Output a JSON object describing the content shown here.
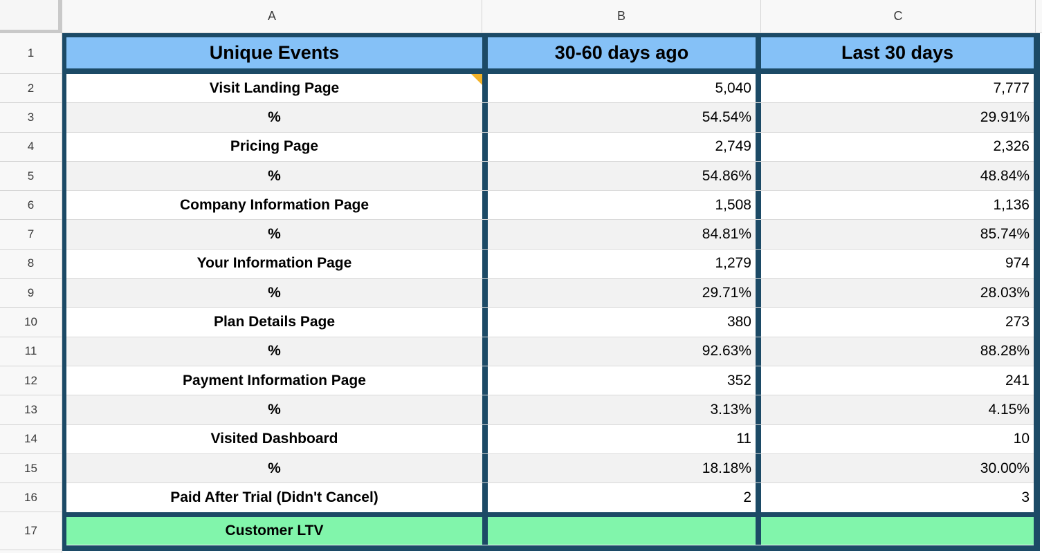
{
  "colors": {
    "header_fill": "#85c1f7",
    "red_fill": "#cc4125",
    "green_fill": "#81f5ab",
    "border_navy": "#1c4a66",
    "note_marker": "#f3b228",
    "alt_row_fill": "#f2f2f2"
  },
  "frame": {
    "column_headers": [
      "A",
      "B",
      "C"
    ],
    "row_numbers": [
      "1",
      "2",
      "3",
      "4",
      "5",
      "6",
      "7",
      "8",
      "9",
      "10",
      "11",
      "12",
      "13",
      "14",
      "15",
      "16",
      "17"
    ]
  },
  "table": {
    "header": {
      "label": "Unique Events",
      "b": "30-60 days ago",
      "c": "Last 30 days"
    },
    "rows": [
      {
        "row": "2",
        "label": "Visit Landing Page",
        "b": "5,040",
        "c": "7,777",
        "shade": false,
        "b_red": false,
        "c_red": false,
        "note": true
      },
      {
        "row": "3",
        "label": "%",
        "b": "54.54%",
        "c": "29.91%",
        "shade": true,
        "b_red": false,
        "c_red": true,
        "note": false
      },
      {
        "row": "4",
        "label": "Pricing Page",
        "b": "2,749",
        "c": "2,326",
        "shade": false,
        "b_red": false,
        "c_red": false,
        "note": false
      },
      {
        "row": "5",
        "label": "%",
        "b": "54.86%",
        "c": "48.84%",
        "shade": true,
        "b_red": false,
        "c_red": false,
        "note": false
      },
      {
        "row": "6",
        "label": "Company Information Page",
        "b": "1,508",
        "c": "1,136",
        "shade": false,
        "b_red": false,
        "c_red": false,
        "note": false
      },
      {
        "row": "7",
        "label": "%",
        "b": "84.81%",
        "c": "85.74%",
        "shade": true,
        "b_red": false,
        "c_red": false,
        "note": false
      },
      {
        "row": "8",
        "label": "Your Information Page",
        "b": "1,279",
        "c": "974",
        "shade": false,
        "b_red": false,
        "c_red": false,
        "note": false
      },
      {
        "row": "9",
        "label": "%",
        "b": "29.71%",
        "c": "28.03%",
        "shade": true,
        "b_red": true,
        "c_red": true,
        "note": false
      },
      {
        "row": "10",
        "label": "Plan Details Page",
        "b": "380",
        "c": "273",
        "shade": false,
        "b_red": false,
        "c_red": false,
        "note": false
      },
      {
        "row": "11",
        "label": "%",
        "b": "92.63%",
        "c": "88.28%",
        "shade": true,
        "b_red": false,
        "c_red": false,
        "note": false
      },
      {
        "row": "12",
        "label": "Payment Information Page",
        "b": "352",
        "c": "241",
        "shade": false,
        "b_red": false,
        "c_red": false,
        "note": false
      },
      {
        "row": "13",
        "label": "%",
        "b": "3.13%",
        "c": "4.15%",
        "shade": true,
        "b_red": true,
        "c_red": true,
        "note": false
      },
      {
        "row": "14",
        "label": "Visited Dashboard",
        "b": "11",
        "c": "10",
        "shade": false,
        "b_red": false,
        "c_red": false,
        "note": false
      },
      {
        "row": "15",
        "label": "%",
        "b": "18.18%",
        "c": "30.00%",
        "shade": true,
        "b_red": true,
        "c_red": true,
        "note": false
      },
      {
        "row": "16",
        "label": "Paid After Trial (Didn't Cancel)",
        "b": "2",
        "c": "3",
        "shade": false,
        "b_red": false,
        "c_red": false,
        "note": false
      }
    ],
    "footer": {
      "label": "Customer LTV",
      "b": "",
      "c": ""
    }
  }
}
